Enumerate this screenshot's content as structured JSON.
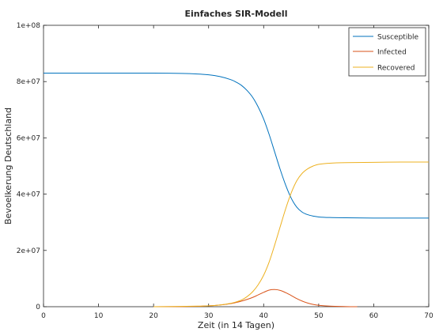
{
  "chart_data": {
    "type": "line",
    "title": "Einfaches SIR-Modell",
    "xlabel": "Zeit (in 14 Tagen)",
    "ylabel": "Bevoelkerung Deutschland",
    "xlim": [
      0,
      70
    ],
    "ylim": [
      0,
      100000000
    ],
    "xticks": [
      0,
      10,
      20,
      30,
      40,
      50,
      60,
      70
    ],
    "xtick_labels": [
      "0",
      "10",
      "20",
      "30",
      "40",
      "50",
      "60",
      "70"
    ],
    "yticks": [
      0,
      20000000,
      40000000,
      60000000,
      80000000,
      100000000
    ],
    "ytick_labels": [
      "0",
      "2e+07",
      "4e+07",
      "6e+07",
      "8e+07",
      "1e+08"
    ],
    "grid": false,
    "legend_position": "top-right",
    "series": [
      {
        "name": "Susceptible",
        "color": "#0072bd",
        "x": [
          0,
          10,
          20,
          25,
          28,
          30,
          32,
          34,
          35,
          36,
          37,
          38,
          39,
          40,
          41,
          42,
          43,
          44,
          45,
          46,
          47,
          48,
          49,
          50,
          52,
          55,
          60,
          65,
          70
        ],
        "y": [
          83000000,
          83000000,
          83000000,
          82900000,
          82700000,
          82400000,
          81800000,
          80700000,
          79800000,
          78600000,
          76800000,
          74400000,
          71000000,
          66700000,
          61200000,
          55000000,
          48800000,
          43200000,
          38600000,
          35400000,
          33600000,
          32700000,
          32200000,
          31900000,
          31700000,
          31600000,
          31500000,
          31500000,
          31500000
        ]
      },
      {
        "name": "Infected",
        "color": "#d95319",
        "x": [
          20,
          25,
          28,
          30,
          32,
          34,
          35,
          36,
          37,
          38,
          39,
          40,
          41,
          42,
          43,
          44,
          45,
          46,
          47,
          48,
          49,
          50,
          52,
          55,
          57
        ],
        "y": [
          0,
          50000,
          150000,
          300000,
          600000,
          1100000,
          1500000,
          2000000,
          2600000,
          3300000,
          4200000,
          5100000,
          5900000,
          6100000,
          5800000,
          5000000,
          4000000,
          2900000,
          2000000,
          1300000,
          800000,
          500000,
          200000,
          50000,
          0
        ]
      },
      {
        "name": "Recovered",
        "color": "#edb120",
        "x": [
          20,
          25,
          28,
          30,
          32,
          34,
          35,
          36,
          37,
          38,
          39,
          40,
          41,
          42,
          43,
          44,
          45,
          46,
          47,
          48,
          49,
          50,
          52,
          55,
          60,
          65,
          70
        ],
        "y": [
          0,
          100000,
          200000,
          300000,
          600000,
          1200000,
          1700000,
          2400000,
          3600000,
          5300000,
          7800000,
          11200000,
          15900000,
          21900000,
          28400000,
          34800000,
          40400000,
          44700000,
          47400000,
          49000000,
          50000000,
          50600000,
          51000000,
          51200000,
          51300000,
          51400000,
          51400000
        ]
      }
    ]
  }
}
